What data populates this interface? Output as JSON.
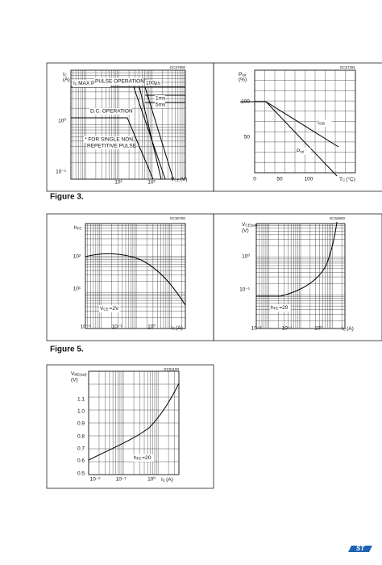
{
  "captions": [
    "Figure 3.",
    "Figure 5."
  ],
  "panels": [
    {
      "code": "GC57900",
      "ylabel": "I",
      "ylabel_sub": "C",
      "yunit": "(A)",
      "xlabel": "V",
      "xlabel_sub": "CE",
      "xunit": "(V)",
      "yticks": [
        "10⁰",
        "10⁻¹"
      ],
      "xticks": [
        "10¹",
        "10²"
      ],
      "annotations": [
        "I",
        "C",
        "MAX PULSED",
        "PULSE OPERATION*",
        "100µs",
        "1ms",
        "5ms",
        "D.C. OPERATION",
        "* FOR SINGLE NON",
        "REPETITIVE PULSE"
      ]
    },
    {
      "code": "GC57291",
      "ylabel": "P",
      "ylabel_sub": "tot",
      "yunit": "(%)",
      "xlabel": "T",
      "xlabel_sub": "C",
      "xunit": "(°C)",
      "yticks": [
        "100",
        "50"
      ],
      "xticks": [
        "0",
        "50",
        "100"
      ],
      "annotations": [
        "I",
        "S/B",
        "P",
        "tot"
      ]
    },
    {
      "code": "GC50780",
      "ylabel": "h",
      "ylabel_sub": "FE",
      "yunit": "",
      "xlabel": "I",
      "xlabel_sub": "C",
      "xunit": "(A)",
      "yticks": [
        "10²",
        "10¹"
      ],
      "xticks": [
        "10⁻²",
        "10⁻¹",
        "10⁰"
      ],
      "annotations": [
        "V",
        "CE",
        "=2V"
      ]
    },
    {
      "code": "GC50800",
      "ylabel": "V",
      "ylabel_sub": "CE(sat)",
      "yunit": "(V)",
      "xlabel": "I",
      "xlabel_sub": "C",
      "xunit": "(A)",
      "yticks": [
        "10⁰",
        "10⁻¹"
      ],
      "xticks": [
        "10⁻²",
        "10⁻¹",
        "10⁰"
      ],
      "annotations": [
        "h",
        "FE",
        "=20"
      ]
    },
    {
      "code": "GC51100",
      "ylabel": "V",
      "ylabel_sub": "BE(sat)",
      "yunit": "(V)",
      "xlabel": "I",
      "xlabel_sub": "C",
      "xunit": "(A)",
      "yticks": [
        "1.1",
        "1.0",
        "0.9",
        "0.8",
        "0.7",
        "0.6",
        "0.5"
      ],
      "xticks": [
        "10⁻²",
        "10⁻¹",
        "10⁰"
      ],
      "annotations": [
        "h",
        "FE",
        "=20"
      ]
    }
  ],
  "logo": "ST"
}
